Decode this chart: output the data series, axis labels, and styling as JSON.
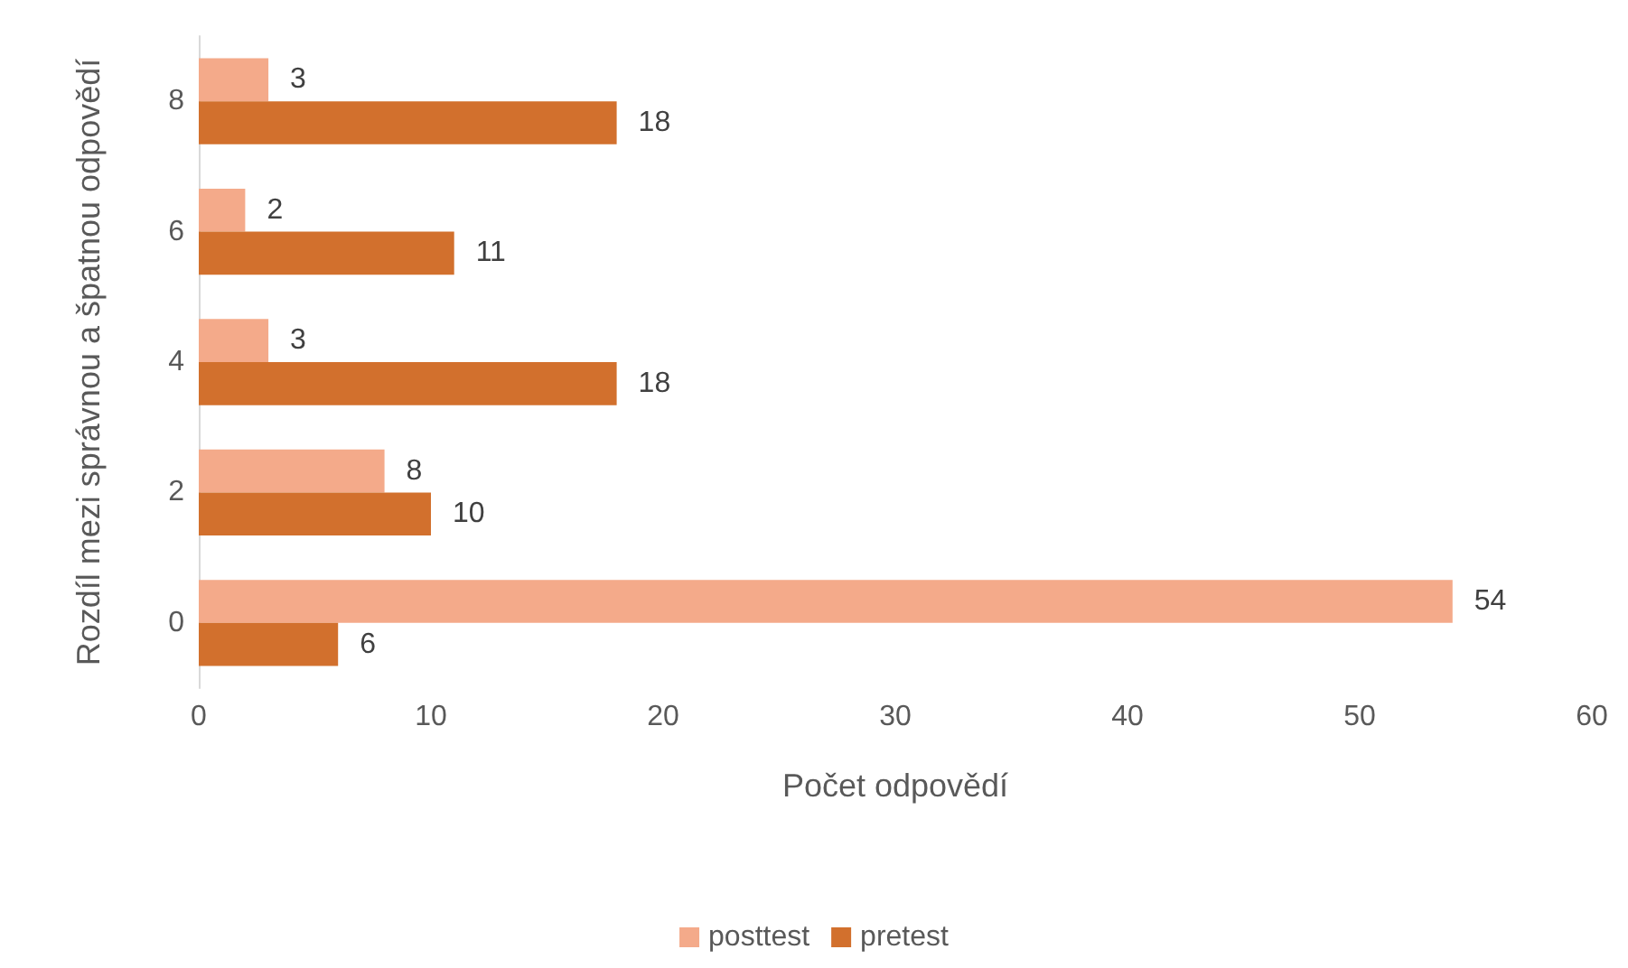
{
  "chart_data": {
    "type": "bar",
    "orientation": "horizontal",
    "xlabel": "Počet odpovědí",
    "ylabel": "Rozdíl mezi správnou a špatnou odpovědí",
    "categories": [
      "8",
      "6",
      "4",
      "2",
      "0"
    ],
    "series": [
      {
        "name": "posttest",
        "color": "#f4aa8a",
        "values": [
          3,
          2,
          3,
          8,
          54
        ]
      },
      {
        "name": "pretest",
        "color": "#d2702d",
        "values": [
          18,
          11,
          18,
          10,
          6
        ]
      }
    ],
    "xlim": [
      0,
      60
    ],
    "xticks": [
      0,
      10,
      20,
      30,
      40,
      50,
      60
    ],
    "grid": false,
    "legend": "bottom",
    "data_labels": true
  }
}
